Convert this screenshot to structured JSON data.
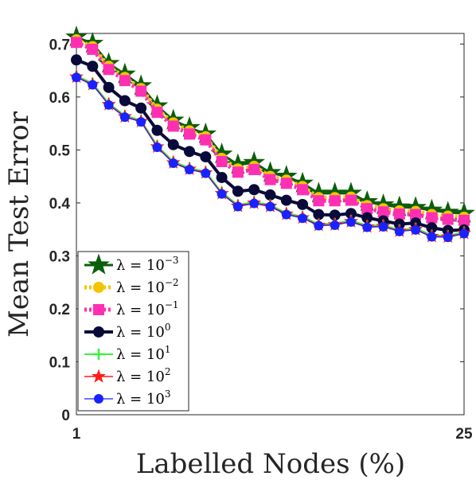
{
  "chart_data": {
    "type": "line",
    "xlabel": "Labelled Nodes (%)",
    "ylabel": "Mean Test Error",
    "xlim": [
      1,
      25
    ],
    "ylim": [
      0,
      0.72
    ],
    "xticks": [
      "1",
      "25"
    ],
    "yticks": [
      "0",
      "0.1",
      "0.2",
      "0.3",
      "0.4",
      "0.5",
      "0.6",
      "0.7"
    ],
    "grid": false,
    "legend_position": "bottom-left",
    "x": [
      1,
      2,
      3,
      4,
      5,
      6,
      7,
      8,
      9,
      10,
      11,
      12,
      13,
      14,
      15,
      16,
      17,
      18,
      19,
      20,
      21,
      22,
      23,
      24,
      25
    ],
    "series": [
      {
        "name_base": "λ = 10",
        "name_exp": "−3",
        "color": "#0b5e0b",
        "marker": "star-large",
        "values": [
          0.713,
          0.701,
          0.663,
          0.643,
          0.621,
          0.583,
          0.556,
          0.542,
          0.53,
          0.492,
          0.472,
          0.476,
          0.457,
          0.45,
          0.437,
          0.418,
          0.418,
          0.418,
          0.402,
          0.396,
          0.392,
          0.391,
          0.386,
          0.382,
          0.38
        ]
      },
      {
        "name_base": "λ = 10",
        "name_exp": "−2",
        "color": "#f5c400",
        "marker": "circle",
        "values": [
          0.708,
          0.695,
          0.658,
          0.637,
          0.616,
          0.577,
          0.551,
          0.536,
          0.525,
          0.484,
          0.464,
          0.469,
          0.45,
          0.443,
          0.431,
          0.41,
          0.41,
          0.411,
          0.395,
          0.389,
          0.385,
          0.384,
          0.378,
          0.375,
          0.373
        ]
      },
      {
        "name_base": "λ = 10",
        "name_exp": "−1",
        "color": "#ff2fb4",
        "marker": "square",
        "values": [
          0.703,
          0.69,
          0.652,
          0.631,
          0.611,
          0.571,
          0.545,
          0.53,
          0.519,
          0.478,
          0.458,
          0.463,
          0.444,
          0.437,
          0.425,
          0.404,
          0.404,
          0.405,
          0.389,
          0.383,
          0.379,
          0.378,
          0.372,
          0.369,
          0.367
        ]
      },
      {
        "name_base": "λ = 10",
        "name_exp": "0",
        "color": "#0a0a3a",
        "marker": "circle",
        "values": [
          0.67,
          0.658,
          0.618,
          0.593,
          0.579,
          0.537,
          0.51,
          0.497,
          0.487,
          0.448,
          0.422,
          0.425,
          0.415,
          0.405,
          0.397,
          0.378,
          0.377,
          0.38,
          0.372,
          0.366,
          0.36,
          0.362,
          0.353,
          0.348,
          0.349
        ]
      },
      {
        "name_base": "λ = 10",
        "name_exp": "1",
        "color": "#3cf03c",
        "marker": "plus",
        "values": [
          0.64,
          0.626,
          0.588,
          0.565,
          0.556,
          0.508,
          0.478,
          0.466,
          0.459,
          0.42,
          0.396,
          0.402,
          0.396,
          0.381,
          0.374,
          0.36,
          0.361,
          0.367,
          0.357,
          0.358,
          0.349,
          0.352,
          0.339,
          0.338,
          0.345
        ]
      },
      {
        "name_base": "λ = 10",
        "name_exp": "2",
        "color": "#ff1a1a",
        "marker": "star",
        "values": [
          0.638,
          0.624,
          0.586,
          0.563,
          0.554,
          0.506,
          0.476,
          0.464,
          0.457,
          0.418,
          0.394,
          0.4,
          0.394,
          0.379,
          0.372,
          0.358,
          0.359,
          0.365,
          0.355,
          0.356,
          0.347,
          0.35,
          0.337,
          0.336,
          0.343
        ]
      },
      {
        "name_base": "λ = 10",
        "name_exp": "3",
        "color": "#1a22ff",
        "marker": "circle-small",
        "values": [
          0.637,
          0.623,
          0.585,
          0.562,
          0.553,
          0.505,
          0.475,
          0.463,
          0.456,
          0.417,
          0.393,
          0.399,
          0.393,
          0.378,
          0.371,
          0.357,
          0.358,
          0.364,
          0.354,
          0.355,
          0.346,
          0.349,
          0.336,
          0.335,
          0.342
        ]
      }
    ]
  }
}
